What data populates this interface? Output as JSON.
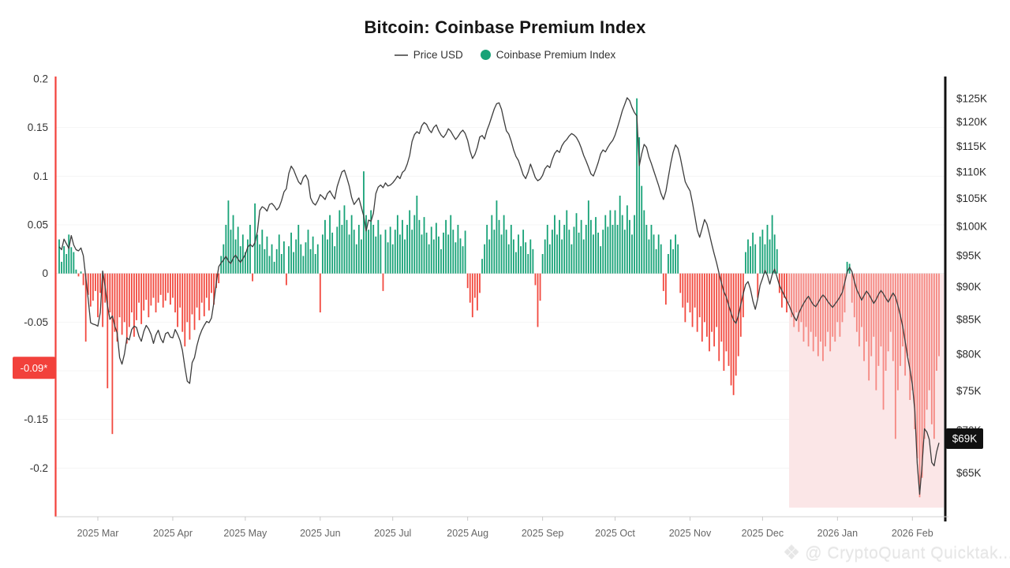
{
  "title": "Bitcoin: Coinbase Premium Index",
  "legend": [
    {
      "label": "Price USD",
      "type": "line",
      "color": "#6b6b6b"
    },
    {
      "label": "Coinbase Premium Index",
      "type": "dot",
      "color": "#17A277"
    }
  ],
  "watermark": {
    "icon": "cryptoquant-logo",
    "icon_glyph": "❖",
    "text": "@ CryptoQuant Quicktak..."
  },
  "badges": {
    "left": {
      "text": "-0.09*",
      "anchor_value": -0.097,
      "bg": "#F2413B",
      "fg": "#ffffff"
    },
    "right": {
      "text": "$69K",
      "anchor_value": 69,
      "bg": "#111111",
      "fg": "#ffffff"
    }
  },
  "axes": {
    "left": {
      "color": "#F2413B",
      "ticks": [
        {
          "label": "0.2",
          "value": 0.2
        },
        {
          "label": "0.15",
          "value": 0.15
        },
        {
          "label": "0.1",
          "value": 0.1
        },
        {
          "label": "0.05",
          "value": 0.05
        },
        {
          "label": "0",
          "value": 0
        },
        {
          "label": "-0.05",
          "value": -0.05
        },
        {
          "label": "-0.15",
          "value": -0.15
        },
        {
          "label": "-0.2",
          "value": -0.2
        }
      ],
      "gridline_values": [
        0.15,
        0.1,
        0.05,
        0,
        -0.05,
        -0.1,
        -0.15,
        -0.2
      ],
      "ylim": [
        -0.25,
        0.2
      ]
    },
    "right": {
      "color": "#111111",
      "scale": "log",
      "ticks": [
        {
          "label": "$125K",
          "value": 125
        },
        {
          "label": "$120K",
          "value": 120
        },
        {
          "label": "$115K",
          "value": 115
        },
        {
          "label": "$110K",
          "value": 110
        },
        {
          "label": "$105K",
          "value": 105
        },
        {
          "label": "$100K",
          "value": 100
        },
        {
          "label": "$95K",
          "value": 95
        },
        {
          "label": "$90K",
          "value": 90
        },
        {
          "label": "$85K",
          "value": 85
        },
        {
          "label": "$80K",
          "value": 80
        },
        {
          "label": "$75K",
          "value": 75
        },
        {
          "label": "$70K",
          "value": 70
        },
        {
          "label": "$65K",
          "value": 65
        }
      ],
      "ylim": [
        60.2,
        129.4
      ]
    },
    "x": {
      "ticks": [
        {
          "label": "2025 Mar",
          "day": 16
        },
        {
          "label": "2025 Apr",
          "day": 47
        },
        {
          "label": "2025 May",
          "day": 77
        },
        {
          "label": "2025 Jun",
          "day": 108
        },
        {
          "label": "2025 Jul",
          "day": 138
        },
        {
          "label": "2025 Aug",
          "day": 169
        },
        {
          "label": "2025 Sep",
          "day": 200
        },
        {
          "label": "2025 Oct",
          "day": 230
        },
        {
          "label": "2025 Nov",
          "day": 261
        },
        {
          "label": "2025 Dec",
          "day": 291
        },
        {
          "label": "2026 Jan",
          "day": 322
        },
        {
          "label": "2026 Feb",
          "day": 353
        }
      ]
    }
  },
  "chart_data": {
    "type": "combo-bar-line",
    "interval": "daily",
    "n_points": 365,
    "highlight_region": {
      "from_day": 302,
      "color": "#FBE6E7",
      "note": "negative premium zone highlight"
    },
    "series": [
      {
        "name": "Coinbase Premium Index",
        "type": "bar",
        "axis": "left",
        "positive_color": "#17A277",
        "negative_color": "#F2493F",
        "values": [
          0.035,
          0.012,
          0.028,
          0.02,
          0.04,
          0.027,
          0.022,
          0.004,
          -0.003,
          0.002,
          -0.012,
          -0.07,
          -0.022,
          -0.034,
          -0.028,
          -0.018,
          -0.045,
          -0.02,
          -0.055,
          -0.03,
          -0.118,
          -0.04,
          -0.165,
          -0.06,
          -0.07,
          -0.045,
          -0.063,
          -0.05,
          -0.072,
          -0.055,
          -0.04,
          -0.065,
          -0.048,
          -0.03,
          -0.052,
          -0.038,
          -0.027,
          -0.045,
          -0.033,
          -0.025,
          -0.04,
          -0.03,
          -0.022,
          -0.035,
          -0.028,
          -0.02,
          -0.032,
          -0.025,
          -0.04,
          -0.055,
          -0.035,
          -0.06,
          -0.075,
          -0.05,
          -0.068,
          -0.042,
          -0.058,
          -0.035,
          -0.048,
          -0.03,
          -0.044,
          -0.025,
          -0.038,
          -0.02,
          -0.032,
          -0.015,
          -0.01,
          0.018,
          0.03,
          0.05,
          0.075,
          0.045,
          0.06,
          0.035,
          0.048,
          0.028,
          0.04,
          0.022,
          0.035,
          0.05,
          -0.008,
          0.072,
          0.04,
          0.03,
          0.045,
          0.025,
          0.038,
          0.018,
          0.03,
          0.012,
          0.025,
          0.04,
          0.02,
          0.033,
          -0.012,
          0.028,
          0.042,
          0.022,
          0.035,
          0.05,
          0.03,
          0.018,
          0.032,
          0.045,
          0.025,
          0.038,
          0.02,
          0.03,
          -0.04,
          0.04,
          0.055,
          0.035,
          0.06,
          0.042,
          0.028,
          0.048,
          0.065,
          0.05,
          0.07,
          0.055,
          0.04,
          0.06,
          0.045,
          0.03,
          0.05,
          0.035,
          0.105,
          0.06,
          0.045,
          0.065,
          0.05,
          0.038,
          0.055,
          0.04,
          -0.018,
          0.045,
          0.032,
          0.048,
          0.03,
          0.045,
          0.06,
          0.04,
          0.055,
          0.035,
          0.05,
          0.065,
          0.045,
          0.06,
          0.08,
          0.055,
          0.04,
          0.058,
          0.042,
          0.03,
          0.048,
          0.035,
          0.052,
          0.038,
          0.025,
          0.042,
          0.055,
          0.04,
          0.06,
          0.045,
          0.032,
          0.05,
          0.036,
          0.028,
          0.044,
          -0.015,
          -0.03,
          -0.045,
          -0.025,
          -0.038,
          -0.02,
          0.015,
          0.03,
          0.05,
          0.035,
          0.06,
          0.045,
          0.075,
          0.055,
          0.04,
          0.06,
          0.045,
          0.03,
          0.05,
          0.035,
          0.022,
          0.04,
          0.028,
          0.045,
          0.032,
          0.02,
          0.035,
          0.025,
          -0.012,
          -0.055,
          -0.028,
          0.02,
          0.035,
          0.05,
          0.03,
          0.045,
          0.06,
          0.04,
          0.055,
          0.035,
          0.05,
          0.065,
          0.045,
          0.03,
          0.048,
          0.062,
          0.042,
          0.055,
          0.035,
          0.05,
          0.075,
          0.055,
          0.04,
          0.058,
          0.042,
          0.028,
          0.045,
          0.06,
          0.048,
          0.065,
          0.05,
          0.065,
          0.05,
          0.08,
          0.06,
          0.045,
          0.07,
          0.055,
          0.04,
          0.06,
          0.18,
          0.14,
          0.09,
          0.065,
          0.05,
          0.035,
          0.05,
          0.04,
          0.025,
          0.04,
          0.03,
          -0.018,
          -0.032,
          0.02,
          0.035,
          0.025,
          0.04,
          0.03,
          -0.02,
          -0.035,
          -0.05,
          -0.03,
          -0.04,
          -0.055,
          -0.035,
          -0.06,
          -0.045,
          -0.07,
          -0.05,
          -0.065,
          -0.08,
          -0.06,
          -0.075,
          -0.055,
          -0.09,
          -0.07,
          -0.1,
          -0.08,
          -0.095,
          -0.115,
          -0.125,
          -0.105,
          -0.085,
          -0.065,
          -0.045,
          0.022,
          0.035,
          0.028,
          0.042,
          0.03,
          -0.025,
          0.038,
          0.045,
          0.03,
          0.05,
          0.035,
          0.06,
          0.04,
          0.025,
          -0.02,
          -0.035,
          -0.025,
          -0.04,
          -0.03,
          -0.045,
          -0.055,
          -0.04,
          -0.06,
          -0.05,
          -0.07,
          -0.055,
          -0.075,
          -0.06,
          -0.08,
          -0.065,
          -0.085,
          -0.07,
          -0.09,
          -0.075,
          -0.06,
          -0.08,
          -0.065,
          -0.07,
          -0.05,
          -0.065,
          -0.05,
          -0.04,
          0.012,
          0.01,
          -0.03,
          -0.045,
          -0.06,
          -0.075,
          -0.055,
          -0.09,
          -0.07,
          -0.11,
          -0.085,
          -0.065,
          -0.12,
          -0.095,
          -0.075,
          -0.14,
          -0.1,
          -0.08,
          -0.06,
          -0.09,
          -0.17,
          -0.12,
          -0.095,
          -0.075,
          -0.105,
          -0.085,
          -0.13,
          -0.12,
          -0.16,
          -0.19,
          -0.23,
          -0.21,
          -0.17,
          -0.14,
          -0.12,
          -0.155,
          -0.17,
          -0.1,
          -0.085
        ]
      },
      {
        "name": "Price USD",
        "type": "line",
        "axis": "right",
        "color": "#3D3D3D",
        "unit": "K USD",
        "values": [
          96.5,
          96.0,
          97.8,
          97.0,
          96.2,
          98.4,
          96.8,
          96.0,
          95.8,
          96.3,
          95.0,
          91.5,
          88.0,
          84.5,
          84.3,
          84.2,
          84.0,
          86.0,
          92.5,
          90.0,
          87.0,
          85.0,
          85.5,
          84.0,
          83.0,
          79.5,
          78.6,
          80.0,
          82.3,
          82.0,
          83.5,
          84.0,
          83.8,
          82.5,
          81.8,
          83.2,
          84.1,
          83.6,
          82.8,
          81.5,
          82.7,
          83.4,
          82.2,
          81.6,
          82.9,
          83.1,
          82.4,
          82.3,
          83.5,
          82.8,
          81.9,
          80.5,
          78.2,
          76.3,
          76.0,
          78.8,
          79.5,
          81.2,
          82.5,
          83.4,
          84.1,
          84.7,
          84.5,
          85.2,
          87.5,
          90.6,
          93.2,
          93.8,
          94.3,
          94.9,
          94.1,
          93.7,
          94.6,
          95.1,
          94.4,
          93.9,
          94.5,
          95.2,
          96.4,
          96.9,
          96.5,
          97.2,
          99.1,
          102.8,
          103.5,
          103.2,
          102.7,
          103.9,
          104.1,
          103.6,
          102.9,
          103.4,
          104.6,
          106.2,
          106.8,
          109.7,
          111.1,
          110.4,
          109.2,
          108.1,
          107.6,
          108.9,
          109.4,
          108.4,
          105.1,
          104.2,
          103.8,
          104.6,
          105.7,
          105.3,
          104.8,
          105.9,
          106.4,
          105.6,
          104.9,
          107.2,
          108.6,
          110.0,
          110.3,
          108.9,
          107.3,
          105.2,
          103.9,
          104.5,
          105.1,
          103.4,
          101.8,
          99.2,
          101.1,
          100.9,
          102.3,
          105.9,
          107.1,
          107.5,
          107.0,
          107.9,
          107.3,
          107.5,
          107.9,
          108.5,
          109.2,
          108.7,
          109.9,
          110.3,
          111.5,
          113.2,
          116.0,
          117.4,
          118.0,
          117.6,
          119.2,
          119.9,
          119.5,
          118.4,
          117.8,
          118.9,
          119.4,
          118.2,
          117.3,
          116.8,
          117.5,
          118.6,
          118.1,
          117.2,
          116.4,
          117.0,
          117.8,
          118.3,
          117.6,
          116.2,
          114.1,
          112.6,
          113.4,
          114.8,
          116.9,
          117.2,
          116.5,
          118.3,
          119.6,
          121.2,
          122.8,
          123.9,
          124.1,
          122.7,
          120.4,
          118.2,
          117.5,
          116.1,
          114.3,
          113.0,
          112.2,
          110.8,
          109.4,
          108.7,
          109.9,
          111.5,
          110.2,
          108.9,
          108.3,
          108.6,
          109.3,
          110.6,
          111.2,
          110.8,
          112.4,
          113.6,
          114.2,
          113.8,
          115.1,
          115.9,
          116.4,
          117.1,
          117.6,
          117.3,
          116.8,
          115.9,
          114.7,
          113.2,
          112.1,
          110.9,
          109.6,
          109.2,
          110.4,
          111.8,
          113.5,
          114.3,
          113.9,
          114.8,
          115.6,
          116.2,
          117.3,
          118.9,
          120.6,
          122.4,
          123.8,
          125.2,
          124.6,
          123.1,
          122.0,
          121.3,
          111.2,
          113.5,
          115.4,
          114.8,
          112.9,
          111.6,
          110.2,
          108.8,
          107.4,
          105.9,
          104.8,
          106.3,
          108.9,
          111.6,
          113.8,
          115.3,
          114.6,
          112.8,
          110.4,
          108.1,
          107.2,
          106.4,
          104.2,
          101.8,
          99.3,
          98.1,
          99.6,
          101.2,
          100.4,
          98.7,
          96.9,
          95.3,
          93.8,
          92.1,
          90.6,
          89.2,
          88.4,
          87.1,
          85.9,
          84.9,
          84.4,
          85.6,
          87.2,
          88.9,
          90.3,
          90.8,
          89.6,
          87.8,
          86.5,
          88.1,
          90.2,
          91.3,
          92.6,
          91.8,
          90.4,
          91.9,
          92.8,
          91.5,
          90.2,
          89.4,
          88.6,
          87.9,
          87.1,
          86.2,
          85.4,
          84.8,
          85.9,
          86.7,
          87.4,
          88.0,
          88.5,
          87.8,
          87.2,
          86.9,
          87.5,
          88.2,
          88.7,
          88.3,
          87.7,
          87.2,
          86.8,
          87.3,
          87.8,
          88.4,
          89.1,
          90.6,
          92.3,
          93.1,
          92.4,
          90.8,
          89.5,
          88.7,
          87.9,
          88.6,
          89.3,
          88.8,
          88.1,
          87.4,
          88.0,
          88.8,
          89.4,
          88.9,
          88.2,
          87.6,
          88.3,
          89.0,
          88.4,
          87.1,
          85.6,
          83.9,
          81.8,
          79.6,
          77.9,
          75.8,
          72.4,
          66.1,
          62.6,
          65.9,
          70.2,
          69.8,
          68.9,
          66.2,
          65.8,
          67.4,
          68.5
        ]
      }
    ]
  }
}
